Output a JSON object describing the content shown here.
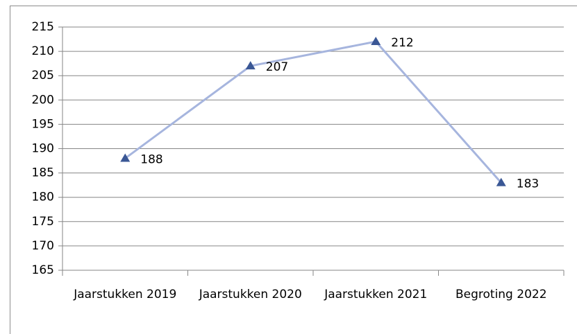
{
  "chart_data": {
    "type": "line",
    "categories": [
      "Jaarstukken 2019",
      "Jaarstukken 2020",
      "Jaarstukken 2021",
      "Begroting 2022"
    ],
    "series": [
      {
        "name": null,
        "color": "#a6b5de",
        "marker_color": "#3a5795",
        "values": [
          188,
          207,
          212,
          183
        ]
      }
    ],
    "ylim": [
      165,
      215
    ],
    "yticks": [
      165,
      170,
      175,
      180,
      185,
      190,
      195,
      200,
      205,
      210,
      215
    ],
    "grid": true
  }
}
